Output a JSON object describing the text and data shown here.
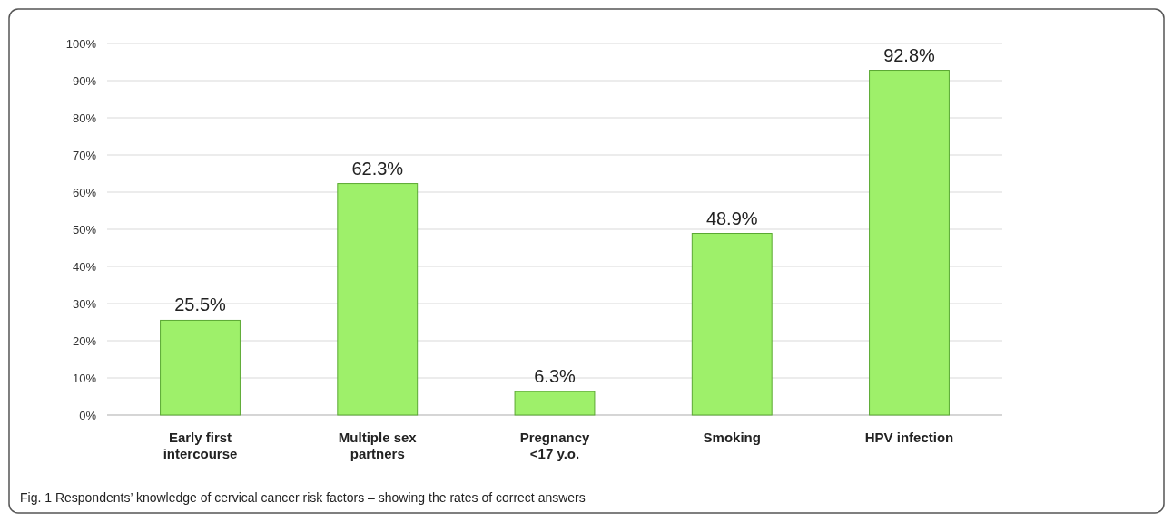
{
  "chart_data": {
    "type": "bar",
    "categories": [
      "Early first\nintercourse",
      "Multiple sex\npartners",
      "Pregnancy\n<17 y.o.",
      "Smoking",
      "HPV infection"
    ],
    "values": [
      25.5,
      62.3,
      6.3,
      48.9,
      92.8
    ],
    "value_labels": [
      "25.5%",
      "62.3%",
      "6.3%",
      "48.9%",
      "92.8%"
    ],
    "color": "#9ef06a",
    "ylim": [
      0,
      100
    ],
    "yticks": [
      {
        "value": 0,
        "label": "0%"
      },
      {
        "value": 10,
        "label": "10%"
      },
      {
        "value": 20,
        "label": "20%"
      },
      {
        "value": 30,
        "label": "30%"
      },
      {
        "value": 40,
        "label": "40%"
      },
      {
        "value": 50,
        "label": "50%"
      },
      {
        "value": 60,
        "label": "60%"
      },
      {
        "value": 70,
        "label": "70%"
      },
      {
        "value": 80,
        "label": "80%"
      },
      {
        "value": 90,
        "label": "90%"
      },
      {
        "value": 100,
        "label": "100%"
      }
    ],
    "grid": "y",
    "annotations": [
      "Fig. 1 Respondents’ knowledge of cervical cancer risk factors – showing the rates of correct answers"
    ]
  }
}
